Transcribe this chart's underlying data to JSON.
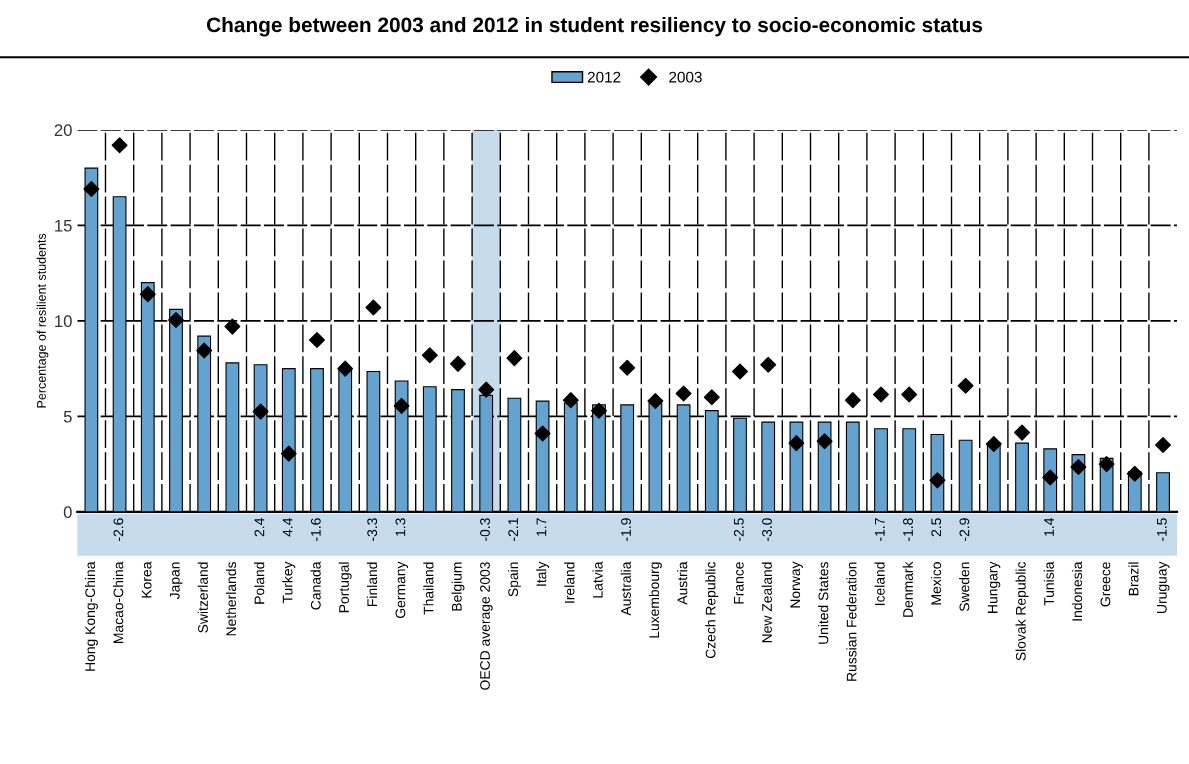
{
  "chart_data": {
    "type": "bar",
    "title": "Change between 2003 and 2012 in student resiliency to socio-economic status",
    "ylabel": "Percentage of resilient students",
    "categories": [
      "Hong Kong-China",
      "Macao-China",
      "Korea",
      "Japan",
      "Switzerland",
      "Netherlands",
      "Poland",
      "Turkey",
      "Canada",
      "Portugal",
      "Finland",
      "Germany",
      "Thailand",
      "Belgium",
      "OECD average 2003",
      "Spain",
      "Italy",
      "Ireland",
      "Latvia",
      "Australia",
      "Luxembourg",
      "Austria",
      "Czech Republic",
      "France",
      "New Zealand",
      "Norway",
      "United States",
      "Russian Federation",
      "Iceland",
      "Denmark",
      "Mexico",
      "Sweden",
      "Hungary",
      "Slovak Republic",
      "Tunisia",
      "Indonesia",
      "Greece",
      "Brazil",
      "Uruguay"
    ],
    "series": [
      {
        "name": "2012",
        "type": "bar",
        "color": "#64a2d0",
        "values": [
          18.0,
          16.5,
          12.0,
          10.6,
          9.2,
          7.8,
          7.7,
          7.5,
          7.5,
          7.4,
          7.35,
          6.85,
          6.55,
          6.4,
          6.1,
          5.95,
          5.8,
          5.7,
          5.6,
          5.6,
          5.7,
          5.6,
          5.3,
          4.9,
          4.7,
          4.7,
          4.7,
          4.7,
          4.35,
          4.35,
          4.05,
          3.75,
          3.6,
          3.6,
          3.3,
          3.0,
          2.8,
          2.1,
          2.05
        ]
      },
      {
        "name": "2003",
        "type": "scatter",
        "color": "#000000",
        "marker": "diamond",
        "values": [
          16.9,
          19.2,
          11.4,
          10.05,
          8.45,
          9.7,
          5.25,
          3.05,
          9.0,
          7.5,
          10.7,
          5.55,
          8.2,
          7.75,
          6.4,
          8.05,
          4.1,
          5.85,
          5.3,
          7.55,
          5.8,
          6.2,
          6.0,
          7.35,
          7.7,
          3.6,
          3.7,
          5.85,
          6.15,
          6.15,
          1.65,
          6.6,
          3.55,
          4.15,
          1.8,
          2.35,
          2.5,
          2.0,
          3.5
        ]
      }
    ],
    "annotations": [
      null,
      "-2.6",
      null,
      null,
      null,
      null,
      "2.4",
      "4.4",
      "-1.6",
      null,
      "-3.3",
      "1.3",
      null,
      null,
      "-0.3",
      "-2.1",
      "1.7",
      null,
      null,
      "-1.9",
      null,
      null,
      null,
      "-2.5",
      "-3.0",
      null,
      null,
      null,
      "-1.7",
      "-1.8",
      "2.5",
      "-2.9",
      null,
      null,
      "1.4",
      null,
      null,
      null,
      "-1.5"
    ],
    "bands": [
      {
        "axis": "x",
        "from": "OECD average 2003",
        "to": "OECD average 2003",
        "color": "#c6dced"
      }
    ],
    "ylim": [
      0,
      20
    ],
    "yticks": [
      0,
      5,
      10,
      15,
      20
    ],
    "grid": "y",
    "legend": "top"
  }
}
